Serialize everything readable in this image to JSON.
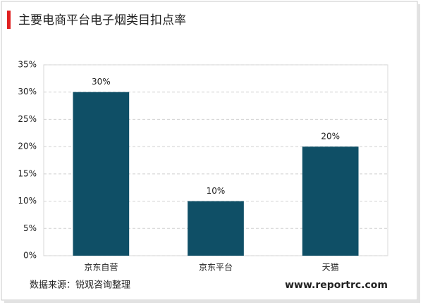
{
  "chart_data": {
    "type": "bar",
    "title": "主要电商平台电子烟类目扣点率",
    "categories": [
      "京东自营",
      "京东平台",
      "天猫"
    ],
    "values": [
      30,
      10,
      20
    ],
    "value_labels": [
      "30%",
      "10%",
      "20%"
    ],
    "color": "#0f4f66",
    "ylim": [
      0,
      35
    ],
    "yticks": [
      {
        "value": 0,
        "label": "0%"
      },
      {
        "value": 5,
        "label": "5%"
      },
      {
        "value": 10,
        "label": "10%"
      },
      {
        "value": 15,
        "label": "15%"
      },
      {
        "value": 20,
        "label": "20%"
      },
      {
        "value": 25,
        "label": "25%"
      },
      {
        "value": 30,
        "label": "30%"
      },
      {
        "value": 35,
        "label": "35%"
      }
    ],
    "grid": true,
    "source": "数据来源：锐观咨询整理",
    "website": "www.reportrc.com"
  }
}
